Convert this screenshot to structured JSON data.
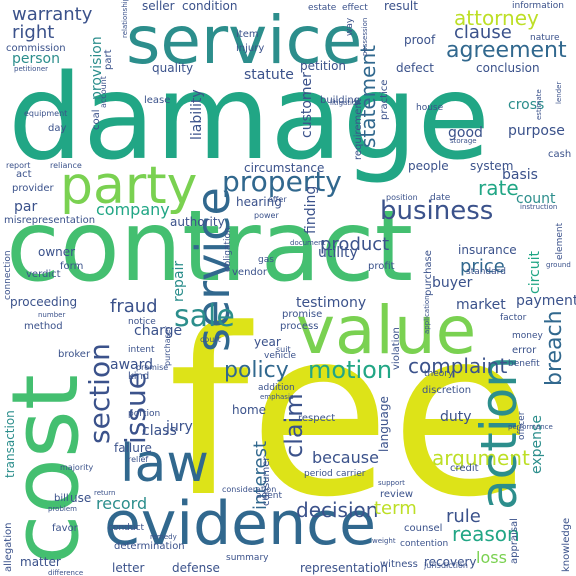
{
  "words": {
    "damage": "damage",
    "fee": "fee",
    "contract": "contract",
    "cost": "cost",
    "service": "service",
    "value": "value",
    "evidence": "evidence",
    "party": "party",
    "law": "law",
    "action": "action",
    "property": "property",
    "business": "business",
    "section": "section",
    "issue": "issue",
    "sale": "sale",
    "agreement": "agreement",
    "attorney": "attorney",
    "motion": "motion",
    "claim": "claim",
    "complaint": "complaint",
    "breach": "breach",
    "policy": "policy",
    "argument": "argument",
    "decision": "decision",
    "reason": "reason",
    "rule": "rule",
    "interest": "interest",
    "term": "term",
    "statement": "statement",
    "price": "price",
    "fraud": "fraud",
    "product": "product",
    "company": "company",
    "customer": "customer",
    "rate": "rate",
    "clause": "clause",
    "right": "right",
    "warranty": "warranty",
    "provision": "provision",
    "person": "person",
    "seller": "seller",
    "condition": "condition",
    "result": "result",
    "record": "record",
    "loss": "loss",
    "because": "because",
    "circuit": "circuit",
    "expense": "expense",
    "class": "class",
    "jury": "jury",
    "award": "award",
    "charge": "charge",
    "purpose": "purpose",
    "finding": "finding",
    "testimony": "testimony",
    "payment": "payment",
    "market": "market",
    "buyer": "buyer",
    "utility": "utility",
    "repair": "repair",
    "authority": "authority",
    "statute": "statute",
    "liability": "liability",
    "quality": "quality",
    "par": "par",
    "basis": "basis",
    "count": "count",
    "insurance": "insurance",
    "good": "good",
    "cross": "cross",
    "conclusion": "conclusion",
    "proof": "proof",
    "defect": "defect",
    "petition": "petition",
    "people": "people",
    "system": "system",
    "circumstance": "circumstance",
    "hearing": "hearing",
    "year": "year",
    "home": "home",
    "duty": "duty",
    "transaction": "transaction",
    "proceeding": "proceeding",
    "defense": "defense",
    "letter": "letter",
    "representation": "representation",
    "matter": "matter",
    "allegation": "allegation",
    "recovery": "recovery",
    "witness": "witness",
    "review": "review",
    "language": "language",
    "respect": "respect",
    "purchase": "purchase",
    "profit": "profit",
    "process": "process",
    "vendor": "vendor",
    "promise": "promise",
    "determination": "determination",
    "failure": "failure",
    "consumer": "consumer",
    "knowledge": "knowledge",
    "appraisal": "appraisal",
    "credit": "credit",
    "owner": "owner",
    "verdict": "verdict",
    "form": "form",
    "provider": "provider",
    "act": "act",
    "misrepresentation": "misrepresentation",
    "day": "day",
    "lease": "lease",
    "building": "building",
    "item": "item",
    "injury": "injury",
    "part": "part",
    "estate": "estate",
    "effect": "effect",
    "information": "information",
    "nature": "nature",
    "commission": "commission",
    "practice": "practice",
    "requirement": "requirement",
    "standard": "standard",
    "date": "date",
    "factor": "factor",
    "error": "error",
    "money": "money",
    "benefit": "benefit",
    "theory": "theory",
    "discretion": "discretion",
    "officer": "officer",
    "violation": "violation",
    "kind": "kind",
    "intent": "intent",
    "vehicle": "vehicle",
    "notice": "notice",
    "portion": "portion",
    "addition": "addition",
    "method": "method",
    "broker": "broker",
    "connection": "connection",
    "obligation": "obligation",
    "gas": "gas",
    "cash": "cash",
    "house": "house",
    "element": "element",
    "counsel": "counsel",
    "contention": "contention",
    "period": "period",
    "carrier": "carrier",
    "agent": "agent",
    "conduct": "conduct",
    "summary": "summary",
    "favor": "favor",
    "use": "use",
    "bill": "bill",
    "way": "way",
    "relief": "relief",
    "majority": "majority",
    "jurisdiction": "jurisdiction",
    "court": "court",
    "account": "account",
    "equipment": "equipment",
    "report": "report",
    "reliance": "reliance",
    "position": "position",
    "power": "power",
    "offer": "offer",
    "suit": "suit",
    "premise": "premise",
    "emphasis": "emphasis",
    "consideration": "consideration",
    "return": "return",
    "problem": "problem",
    "difference": "difference",
    "remedy": "remedy",
    "weight": "weight",
    "support": "support",
    "performance": "performance",
    "application": "application",
    "litigation": "litigation",
    "purchaser": "purchaser",
    "document": "document",
    "ground": "ground",
    "instruction": "instruction",
    "estimate": "estimate",
    "lender": "lender",
    "storage": "storage",
    "possession": "possession",
    "relationship": "relationship",
    "petitioner": "petitioner",
    "number": "number",
    "coal": "coal"
  }
}
